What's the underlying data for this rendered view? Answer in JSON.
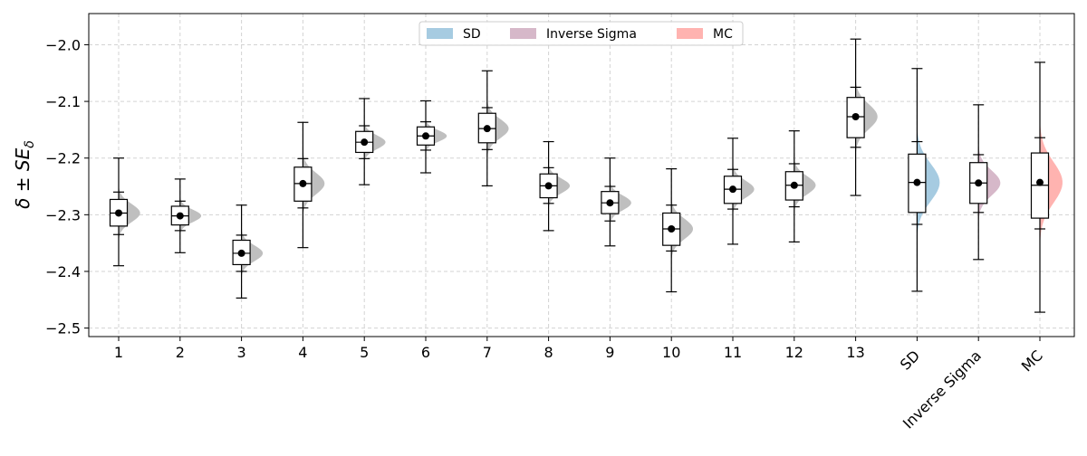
{
  "chart_data": {
    "type": "box-violin",
    "title": "",
    "xlabel": "",
    "ylabel": "δ ± SE_δ",
    "ylim": [
      -2.515,
      -1.945
    ],
    "yticks": [
      -2.0,
      -2.1,
      -2.2,
      -2.3,
      -2.4,
      -2.5
    ],
    "ytick_labels": [
      "−2.0",
      "−2.1",
      "−2.2",
      "−2.3",
      "−2.4",
      "−2.5"
    ],
    "grid": true,
    "legend": {
      "placement": "top-center",
      "entries": [
        {
          "label": "SD",
          "color": "#a6cbe1"
        },
        {
          "label": "Inverse Sigma",
          "color": "#d6b8c9"
        },
        {
          "label": "MC",
          "color": "#ffb3b0"
        }
      ]
    },
    "categories": [
      "1",
      "2",
      "3",
      "4",
      "5",
      "6",
      "7",
      "8",
      "9",
      "10",
      "11",
      "12",
      "13",
      "SD",
      "Inverse Sigma",
      "MC"
    ],
    "rotated_labels": [
      "SD",
      "Inverse Sigma",
      "MC"
    ],
    "series": [
      {
        "category": "1",
        "mean": -2.297,
        "median": -2.297,
        "q1": -2.32,
        "q3": -2.273,
        "whisker_low": -2.335,
        "whisker_high": -2.26,
        "min": -2.39,
        "max": -2.2,
        "sd": 0.016,
        "color": "#bfbfbf"
      },
      {
        "category": "2",
        "mean": -2.302,
        "median": -2.302,
        "q1": -2.318,
        "q3": -2.285,
        "whisker_low": -2.328,
        "whisker_high": -2.276,
        "min": -2.367,
        "max": -2.237,
        "sd": 0.011,
        "color": "#bfbfbf"
      },
      {
        "category": "3",
        "mean": -2.368,
        "median": -2.368,
        "q1": -2.388,
        "q3": -2.345,
        "whisker_low": -2.4,
        "whisker_high": -2.336,
        "min": -2.447,
        "max": -2.283,
        "sd": 0.014,
        "color": "#bfbfbf"
      },
      {
        "category": "4",
        "mean": -2.245,
        "median": -2.245,
        "q1": -2.276,
        "q3": -2.216,
        "whisker_low": -2.288,
        "whisker_high": -2.201,
        "min": -2.358,
        "max": -2.137,
        "sd": 0.019,
        "color": "#bfbfbf"
      },
      {
        "category": "5",
        "mean": -2.172,
        "median": -2.172,
        "q1": -2.19,
        "q3": -2.153,
        "whisker_low": -2.201,
        "whisker_high": -2.143,
        "min": -2.247,
        "max": -2.095,
        "sd": 0.012,
        "color": "#bfbfbf"
      },
      {
        "category": "6",
        "mean": -2.161,
        "median": -2.161,
        "q1": -2.177,
        "q3": -2.145,
        "whisker_low": -2.186,
        "whisker_high": -2.136,
        "min": -2.226,
        "max": -2.099,
        "sd": 0.01,
        "color": "#bfbfbf"
      },
      {
        "category": "7",
        "mean": -2.148,
        "median": -2.148,
        "q1": -2.173,
        "q3": -2.121,
        "whisker_low": -2.185,
        "whisker_high": -2.111,
        "min": -2.249,
        "max": -2.046,
        "sd": 0.017,
        "color": "#bfbfbf"
      },
      {
        "category": "8",
        "mean": -2.249,
        "median": -2.249,
        "q1": -2.27,
        "q3": -2.228,
        "whisker_low": -2.28,
        "whisker_high": -2.217,
        "min": -2.328,
        "max": -2.171,
        "sd": 0.013,
        "color": "#bfbfbf"
      },
      {
        "category": "9",
        "mean": -2.279,
        "median": -2.279,
        "q1": -2.298,
        "q3": -2.259,
        "whisker_low": -2.311,
        "whisker_high": -2.25,
        "min": -2.355,
        "max": -2.2,
        "sd": 0.013,
        "color": "#bfbfbf"
      },
      {
        "category": "10",
        "mean": -2.325,
        "median": -2.325,
        "q1": -2.354,
        "q3": -2.297,
        "whisker_low": -2.364,
        "whisker_high": -2.283,
        "min": -2.436,
        "max": -2.219,
        "sd": 0.018,
        "color": "#bfbfbf"
      },
      {
        "category": "11",
        "mean": -2.255,
        "median": -2.255,
        "q1": -2.28,
        "q3": -2.232,
        "whisker_low": -2.29,
        "whisker_high": -2.22,
        "min": -2.352,
        "max": -2.165,
        "sd": 0.015,
        "color": "#bfbfbf"
      },
      {
        "category": "12",
        "mean": -2.248,
        "median": -2.248,
        "q1": -2.274,
        "q3": -2.224,
        "whisker_low": -2.286,
        "whisker_high": -2.21,
        "min": -2.348,
        "max": -2.152,
        "sd": 0.016,
        "color": "#bfbfbf"
      },
      {
        "category": "13",
        "mean": -2.127,
        "median": -2.127,
        "q1": -2.164,
        "q3": -2.093,
        "whisker_low": -2.181,
        "whisker_high": -2.075,
        "min": -2.266,
        "max": -1.99,
        "sd": 0.022,
        "color": "#bfbfbf"
      },
      {
        "category": "SD",
        "mean": -2.243,
        "median": -2.243,
        "q1": -2.296,
        "q3": -2.193,
        "whisker_low": -2.317,
        "whisker_high": -2.171,
        "min": -2.435,
        "max": -2.042,
        "sd": 0.033,
        "color": "#a6cbe1"
      },
      {
        "category": "Inverse Sigma",
        "mean": -2.244,
        "median": -2.244,
        "q1": -2.28,
        "q3": -2.208,
        "whisker_low": -2.296,
        "whisker_high": -2.194,
        "min": -2.379,
        "max": -2.106,
        "sd": 0.022,
        "color": "#d6b8c9"
      },
      {
        "category": "MC",
        "mean": -2.243,
        "median": -2.248,
        "q1": -2.306,
        "q3": -2.191,
        "whisker_low": -2.325,
        "whisker_high": -2.164,
        "min": -2.472,
        "max": -2.031,
        "sd": 0.036,
        "color": "#ffb3b0"
      }
    ]
  }
}
